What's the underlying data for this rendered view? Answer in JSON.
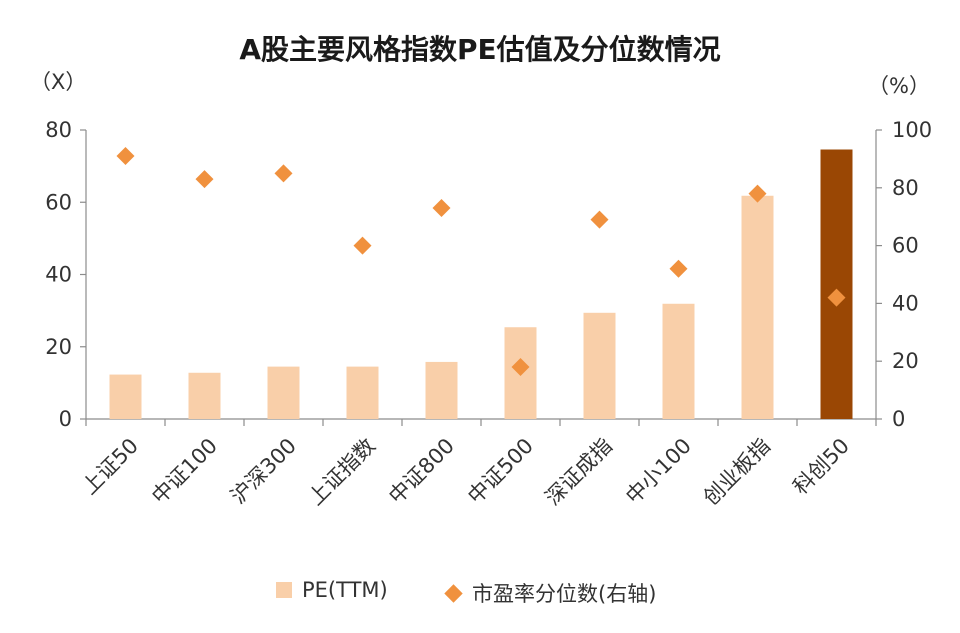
{
  "chart_data": {
    "type": "bar",
    "title": "A股主要风格指数PE估值及分位数情况",
    "y_unit_left": "（X）",
    "y_unit_right": "（%）",
    "categories": [
      "上证50",
      "中证100",
      "沪深300",
      "上证指数",
      "中证800",
      "中证500",
      "深证成指",
      "中小100",
      "创业板指",
      "科创50"
    ],
    "series": [
      {
        "name": "PE(TTM)",
        "type": "bar",
        "axis": "left",
        "values": [
          12.3,
          12.8,
          14.5,
          14.5,
          15.8,
          25.4,
          29.4,
          31.9,
          61.8,
          74.6
        ],
        "color": "#f9cfa9",
        "highlight_color": "#9a4704",
        "highlight_index": 9
      },
      {
        "name": "市盈率分位数(右轴)",
        "type": "scatter",
        "marker": "diamond",
        "axis": "right",
        "values": [
          91,
          83,
          85,
          60,
          73,
          18,
          69,
          52,
          78,
          42
        ],
        "color": "#f0913e"
      }
    ],
    "ylim_left": [
      0,
      80
    ],
    "yticks_left": [
      "0",
      "20",
      "40",
      "60",
      "80"
    ],
    "ylim_right": [
      0,
      100
    ],
    "yticks_right": [
      "0",
      "20",
      "40",
      "60",
      "80",
      "100"
    ],
    "grid": false,
    "legend_position": "bottom"
  }
}
